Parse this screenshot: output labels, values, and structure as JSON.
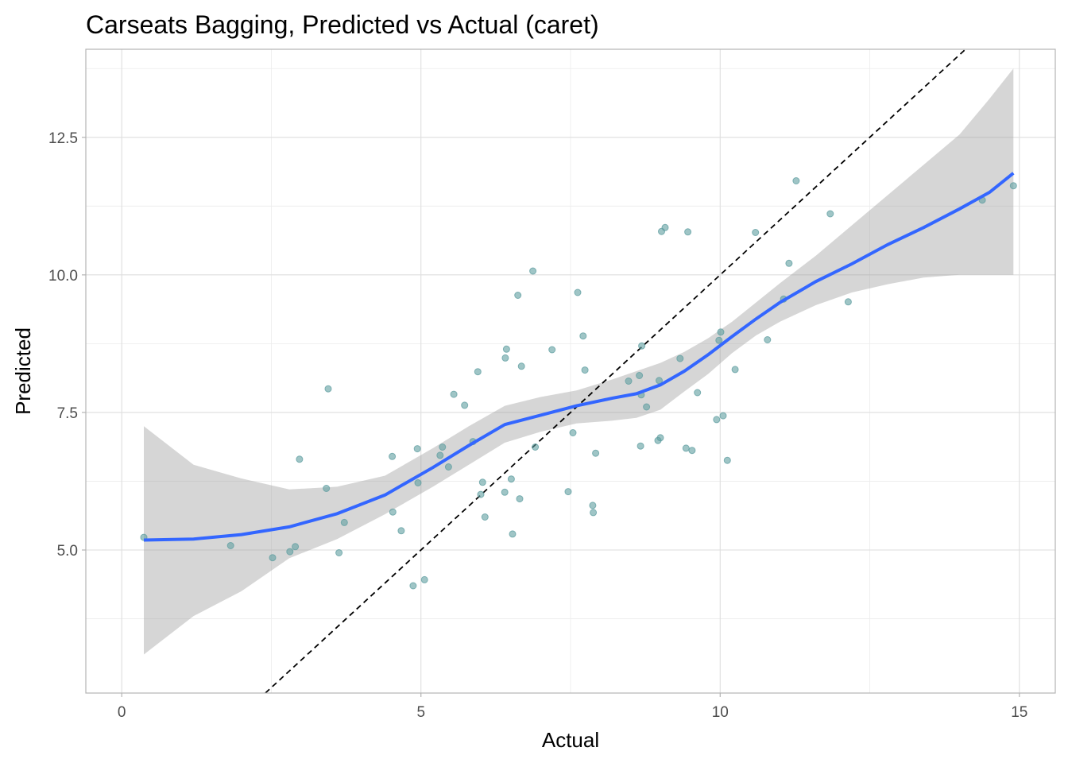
{
  "chart_data": {
    "type": "scatter",
    "title": "Carseats Bagging, Predicted vs Actual (caret)",
    "xlabel": "Actual",
    "ylabel": "Predicted",
    "xlim": [
      -0.6,
      15.6
    ],
    "ylim": [
      2.4,
      14.1
    ],
    "xticks": [
      0,
      5,
      10,
      15
    ],
    "xtick_labels": [
      "0",
      "5",
      "10",
      "15"
    ],
    "yticks": [
      5.0,
      7.5,
      10.0,
      12.5
    ],
    "ytick_labels": [
      "5.0",
      "7.5",
      "10.0",
      "12.5"
    ],
    "grid": true,
    "reference_line": {
      "slope": 1,
      "intercept": 0,
      "style": "dashed",
      "color": "#000000"
    },
    "point_color": "#5f9ea0",
    "smooth_color": "#3366ff",
    "ribbon_color": "#999999",
    "points": [
      [
        0.37,
        5.23
      ],
      [
        1.82,
        5.08
      ],
      [
        2.52,
        4.86
      ],
      [
        2.81,
        4.97
      ],
      [
        2.9,
        5.06
      ],
      [
        2.97,
        6.65
      ],
      [
        3.42,
        6.12
      ],
      [
        3.45,
        7.93
      ],
      [
        3.63,
        4.95
      ],
      [
        3.72,
        5.5
      ],
      [
        4.52,
        6.7
      ],
      [
        4.53,
        5.69
      ],
      [
        4.67,
        5.35
      ],
      [
        4.87,
        4.35
      ],
      [
        4.94,
        6.84
      ],
      [
        4.95,
        6.22
      ],
      [
        5.06,
        4.46
      ],
      [
        5.32,
        6.72
      ],
      [
        5.36,
        6.87
      ],
      [
        5.46,
        6.51
      ],
      [
        5.55,
        7.83
      ],
      [
        5.73,
        7.63
      ],
      [
        5.87,
        6.97
      ],
      [
        5.95,
        8.24
      ],
      [
        6.0,
        6.01
      ],
      [
        6.03,
        6.23
      ],
      [
        6.07,
        5.6
      ],
      [
        6.4,
        6.05
      ],
      [
        6.41,
        8.49
      ],
      [
        6.43,
        8.65
      ],
      [
        6.51,
        6.29
      ],
      [
        6.53,
        5.29
      ],
      [
        6.62,
        9.63
      ],
      [
        6.65,
        5.93
      ],
      [
        6.68,
        8.34
      ],
      [
        6.87,
        10.07
      ],
      [
        6.91,
        6.87
      ],
      [
        7.19,
        8.64
      ],
      [
        7.46,
        6.06
      ],
      [
        7.54,
        7.13
      ],
      [
        7.62,
        9.68
      ],
      [
        7.71,
        8.89
      ],
      [
        7.74,
        8.27
      ],
      [
        7.87,
        5.81
      ],
      [
        7.88,
        5.68
      ],
      [
        7.92,
        6.76
      ],
      [
        8.47,
        8.07
      ],
      [
        8.65,
        8.17
      ],
      [
        8.67,
        6.89
      ],
      [
        8.68,
        7.82
      ],
      [
        8.69,
        8.71
      ],
      [
        8.77,
        7.6
      ],
      [
        8.96,
        6.99
      ],
      [
        8.98,
        8.08
      ],
      [
        9.0,
        7.04
      ],
      [
        9.02,
        10.79
      ],
      [
        9.08,
        10.86
      ],
      [
        9.33,
        8.48
      ],
      [
        9.43,
        6.85
      ],
      [
        9.46,
        10.78
      ],
      [
        9.53,
        6.81
      ],
      [
        9.62,
        7.86
      ],
      [
        9.94,
        7.37
      ],
      [
        9.98,
        8.81
      ],
      [
        10.01,
        8.96
      ],
      [
        10.05,
        7.44
      ],
      [
        10.12,
        6.63
      ],
      [
        10.25,
        8.28
      ],
      [
        10.59,
        10.77
      ],
      [
        10.79,
        8.82
      ],
      [
        11.06,
        9.56
      ],
      [
        11.15,
        10.21
      ],
      [
        11.27,
        11.71
      ],
      [
        11.84,
        11.11
      ],
      [
        12.14,
        9.51
      ],
      [
        14.38,
        11.36
      ],
      [
        14.9,
        11.62
      ]
    ],
    "smooth": {
      "x": [
        0.37,
        1.2,
        2.0,
        2.8,
        3.6,
        4.4,
        5.2,
        5.8,
        6.4,
        7.0,
        7.6,
        8.2,
        8.6,
        9.0,
        9.4,
        9.8,
        10.2,
        10.6,
        11.0,
        11.6,
        12.2,
        12.8,
        13.4,
        14.0,
        14.5,
        14.9
      ],
      "y": [
        5.18,
        5.2,
        5.28,
        5.42,
        5.66,
        6.0,
        6.5,
        6.9,
        7.28,
        7.45,
        7.62,
        7.76,
        7.84,
        8.0,
        8.25,
        8.55,
        8.88,
        9.2,
        9.5,
        9.88,
        10.2,
        10.55,
        10.86,
        11.2,
        11.5,
        11.85
      ],
      "lower": [
        3.1,
        3.8,
        4.25,
        4.85,
        5.2,
        5.65,
        6.15,
        6.55,
        6.95,
        7.15,
        7.3,
        7.35,
        7.4,
        7.55,
        7.88,
        8.2,
        8.58,
        8.9,
        9.15,
        9.45,
        9.68,
        9.83,
        9.95,
        10.0,
        10.0,
        10.0
      ],
      "upper": [
        7.25,
        6.55,
        6.3,
        6.1,
        6.15,
        6.35,
        6.85,
        7.25,
        7.62,
        7.78,
        7.9,
        8.1,
        8.25,
        8.4,
        8.6,
        8.85,
        9.15,
        9.5,
        9.85,
        10.35,
        10.9,
        11.45,
        12.0,
        12.55,
        13.2,
        13.75
      ]
    }
  }
}
